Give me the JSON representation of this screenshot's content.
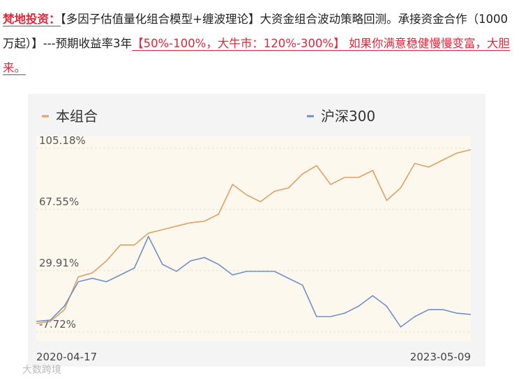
{
  "header": {
    "brand": "梵地投资：",
    "text": "【多因子估值量化组合模型+缠波理论】大资金组合波动策略回测。承接资金合作（1000万起）】---预期收益率3年",
    "highlight": "【50%-100%，大牛市：120%-300%】 如果你满意稳健慢慢变富，大胆来。"
  },
  "watermark": "大数跨境",
  "chart_data": {
    "type": "line",
    "categories": [
      "2020-04-17",
      null,
      null,
      null,
      null,
      null,
      null,
      null,
      null,
      null,
      null,
      null,
      null,
      null,
      null,
      null,
      null,
      null,
      null,
      null,
      null,
      null,
      null,
      null,
      null,
      null,
      null,
      null,
      null,
      null,
      null,
      "2023-05-09"
    ],
    "series": [
      {
        "name": "本组合",
        "color": "#e0a062",
        "values": [
          -2.6,
          -1.3,
          5.9,
          26.1,
          28.6,
          35.9,
          45.7,
          45.7,
          53.0,
          55.1,
          57.3,
          59.4,
          60.3,
          64.6,
          82.9,
          76.5,
          72.3,
          78.7,
          80.8,
          89.4,
          94.5,
          82.9,
          87.2,
          87.2,
          91.5,
          73.1,
          80.8,
          95.8,
          93.6,
          97.9,
          102.2,
          104.3
        ]
      },
      {
        "name": "沪深300",
        "color": "#6f8fcb",
        "values": [
          -1.3,
          -0.5,
          8.1,
          23.1,
          25.2,
          23.1,
          27.3,
          31.6,
          50.9,
          33.8,
          29.5,
          35.9,
          38.0,
          33.8,
          27.3,
          29.5,
          29.5,
          29.5,
          25.2,
          21.0,
          1.7,
          1.7,
          3.8,
          8.1,
          14.5,
          8.1,
          -4.7,
          1.7,
          6.0,
          6.0,
          3.8,
          3.0
        ]
      }
    ],
    "ylim": [
      -13.28,
      112.88
    ],
    "yticks": [
      {
        "value": -7.72,
        "label": "-7.72%"
      },
      {
        "value": 29.91,
        "label": "29.91%"
      },
      {
        "value": 67.55,
        "label": "67.55%"
      },
      {
        "value": 105.18,
        "label": "105.18%"
      }
    ],
    "grid": true
  }
}
